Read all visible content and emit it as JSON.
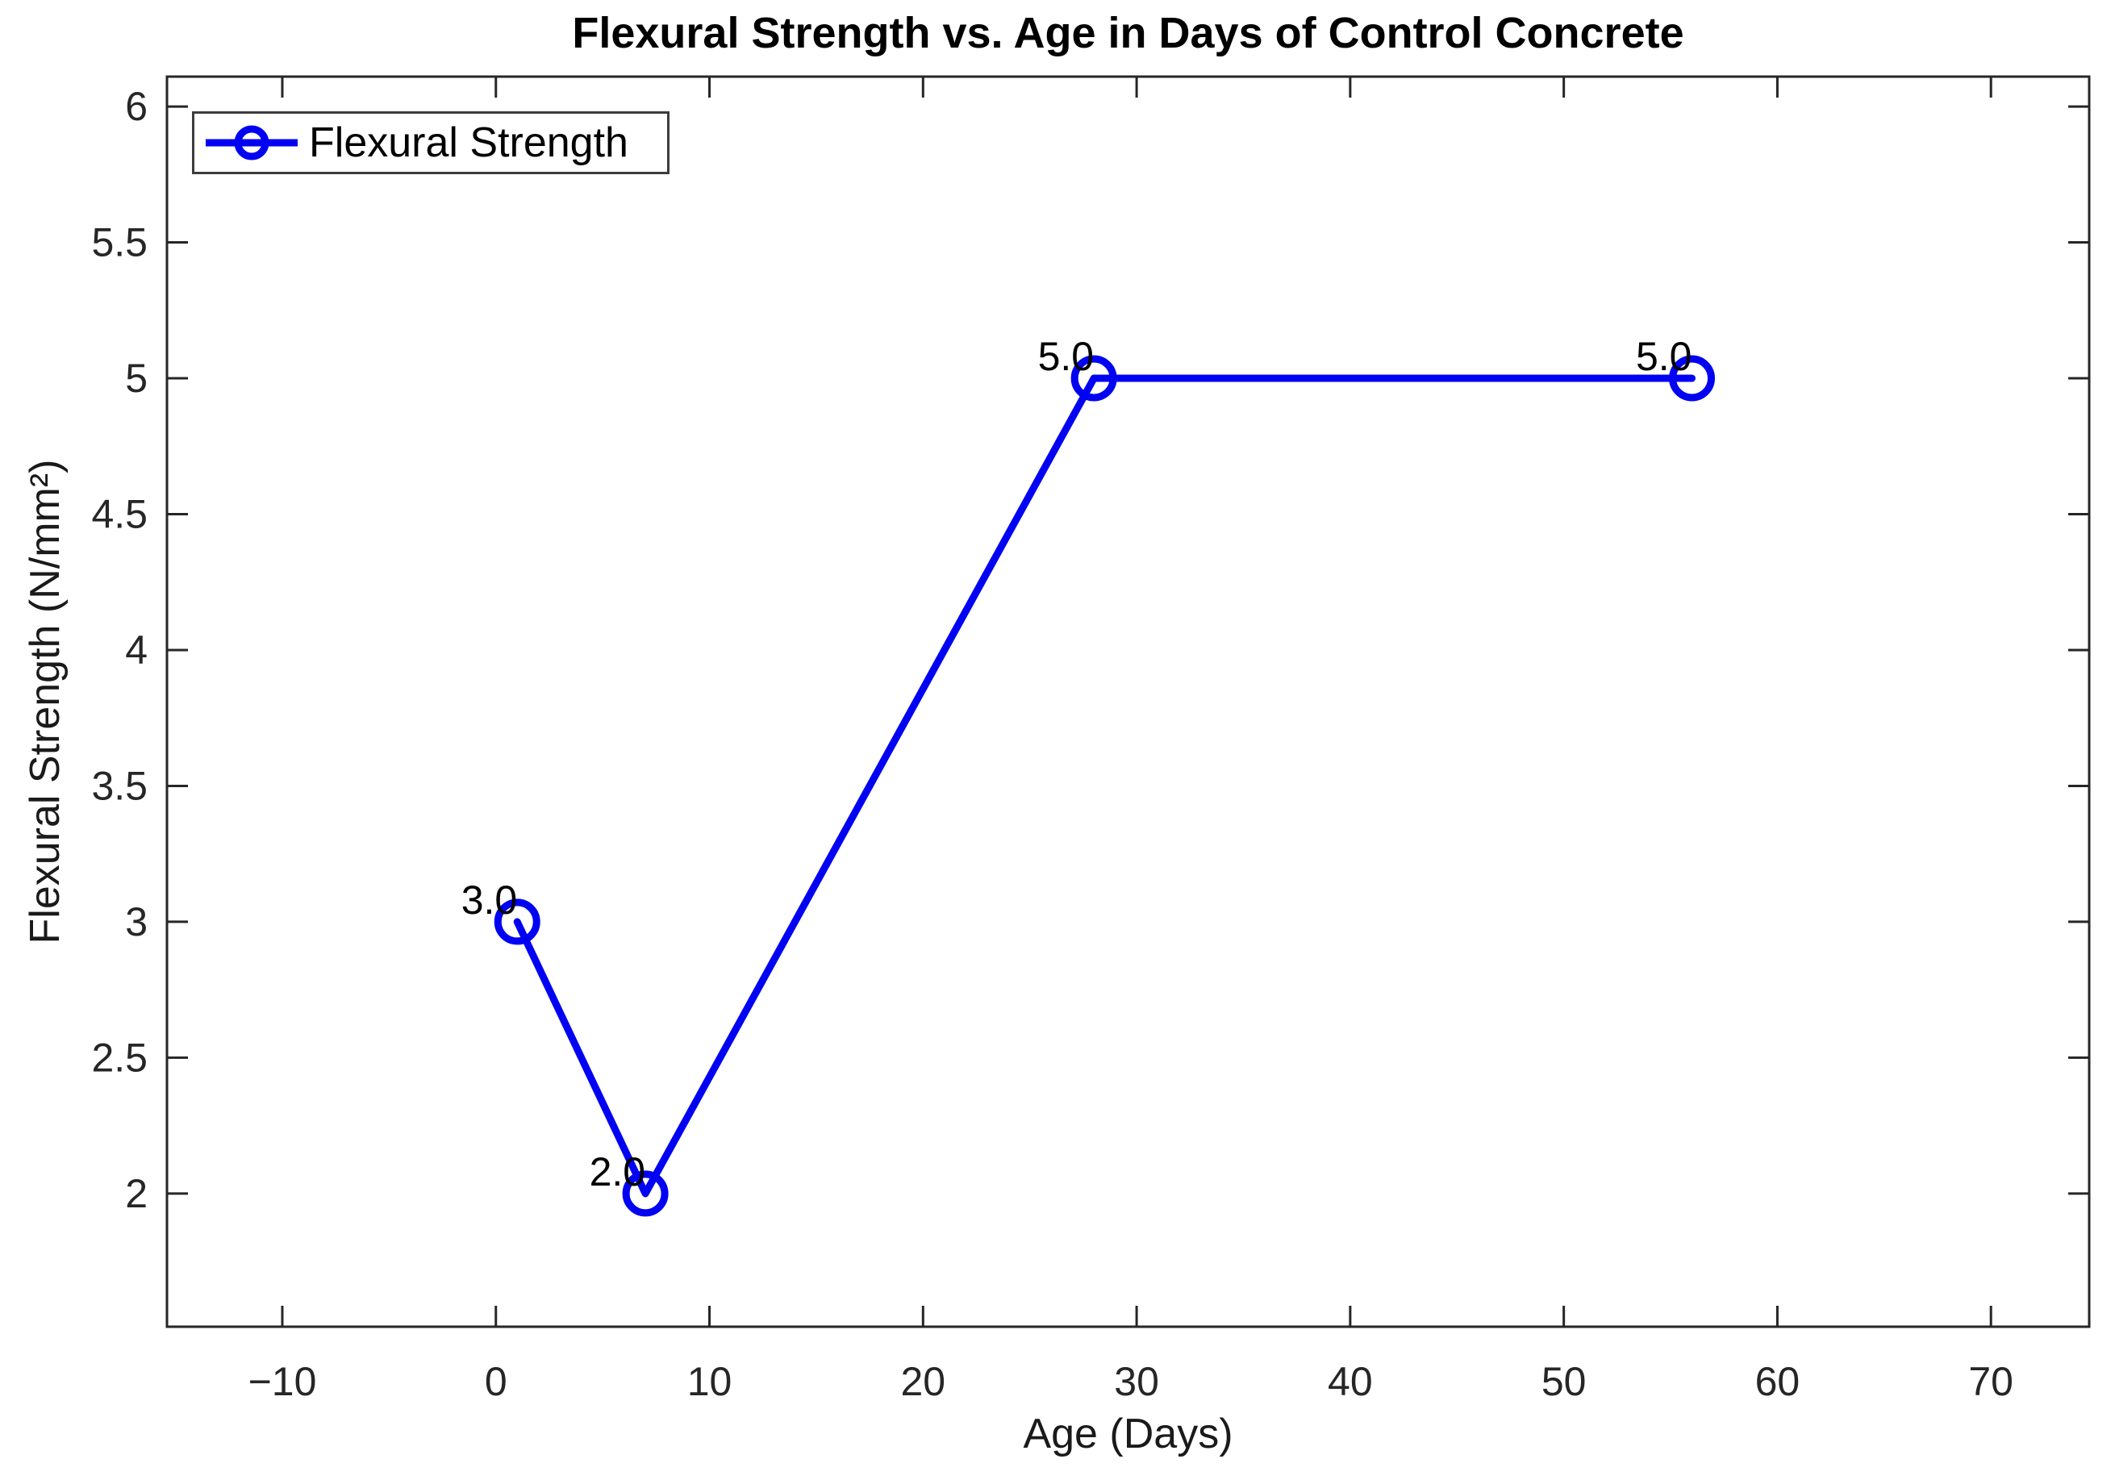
{
  "chart_data": {
    "type": "line",
    "title": "Flexural Strength vs. Age in Days of Control Concrete",
    "xlabel": "Age (Days)",
    "ylabel": "Flexural Strength (N/mm²)",
    "x": [
      1,
      7,
      28,
      56
    ],
    "series": [
      {
        "name": "Flexural Strength",
        "values": [
          3.0,
          2.0,
          5.0,
          5.0
        ],
        "point_labels": [
          "3.0",
          "2.0",
          "5.0",
          "5.0"
        ]
      }
    ],
    "x_ticks": [
      -10,
      0,
      10,
      20,
      30,
      40,
      50,
      60,
      70
    ],
    "y_ticks": [
      2,
      2.5,
      3,
      3.5,
      4,
      4.5,
      5,
      5.5,
      6
    ],
    "xlim": [
      -15.4,
      74.6
    ],
    "ylim": [
      1.51,
      6.11
    ],
    "grid": false,
    "box": true,
    "tick_direction": "in",
    "legend_position": "top-left",
    "line_color": "#0202f2",
    "marker": "open-circle",
    "axis_color": "#262626",
    "tick_label_color": "#262626",
    "point_label_color": "#000000"
  }
}
